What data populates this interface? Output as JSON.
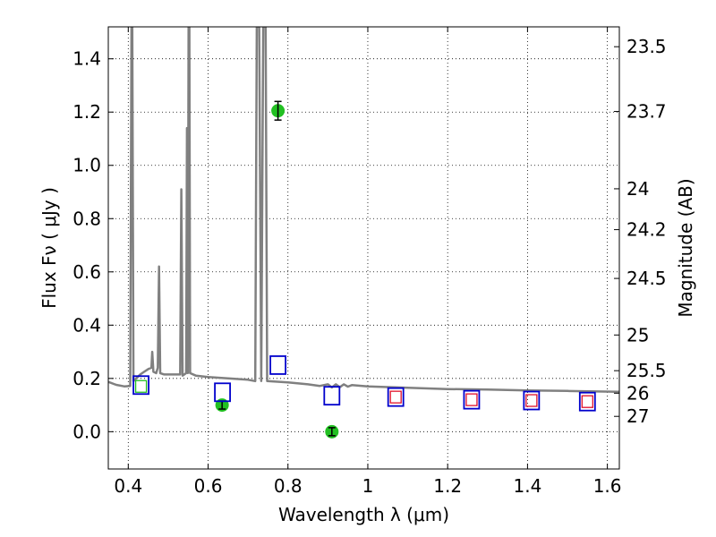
{
  "chart_data": {
    "type": "scatter",
    "xlabel": "Wavelength  λ (μm)",
    "ylabel": "Flux  Fν  ( μJy )",
    "y2label": "Magnitude (AB)",
    "xlim": [
      0.35,
      1.63
    ],
    "ylim": [
      -0.14,
      1.52
    ],
    "grid": true,
    "xticks": [
      0.4,
      0.6,
      0.8,
      1.0,
      1.2,
      1.4,
      1.6
    ],
    "xtick_labels": [
      "0.4",
      "0.6",
      "0.8",
      "1",
      "1.2",
      "1.4",
      "1.6"
    ],
    "yticks": [
      0.0,
      0.2,
      0.4,
      0.6,
      0.8,
      1.0,
      1.2,
      1.4
    ],
    "ytick_labels": [
      "0.0",
      "0.2",
      "0.4",
      "0.6",
      "0.8",
      "1.0",
      "1.2",
      "1.4"
    ],
    "mag_ticks": [
      23.5,
      23.7,
      24,
      24.2,
      24.5,
      25,
      25.5,
      26,
      27
    ],
    "mag_tick_labels": [
      "23.5",
      "23.7",
      "24",
      "24.2",
      "24.5",
      "25",
      "25.5",
      "26",
      "27"
    ],
    "colors": {
      "spectrum": "#808080",
      "observed": "#22c022",
      "model_blue": "#0000cc",
      "model_red": "#e0102a",
      "green_square": "#22c022"
    },
    "series": [
      {
        "kind": "spectrum",
        "points": [
          [
            0.35,
            0.187
          ],
          [
            0.37,
            0.176
          ],
          [
            0.39,
            0.17
          ],
          [
            0.405,
            0.172
          ],
          [
            0.408,
            1.52
          ],
          [
            0.41,
            1.52
          ],
          [
            0.413,
            0.19
          ],
          [
            0.42,
            0.2
          ],
          [
            0.43,
            0.215
          ],
          [
            0.44,
            0.225
          ],
          [
            0.45,
            0.235
          ],
          [
            0.458,
            0.24
          ],
          [
            0.46,
            0.3
          ],
          [
            0.463,
            0.225
          ],
          [
            0.47,
            0.22
          ],
          [
            0.474,
            0.24
          ],
          [
            0.477,
            0.62
          ],
          [
            0.48,
            0.22
          ],
          [
            0.49,
            0.215
          ],
          [
            0.5,
            0.215
          ],
          [
            0.51,
            0.215
          ],
          [
            0.52,
            0.215
          ],
          [
            0.53,
            0.215
          ],
          [
            0.533,
            0.91
          ],
          [
            0.536,
            0.21
          ],
          [
            0.545,
            0.22
          ],
          [
            0.547,
            1.14
          ],
          [
            0.549,
            0.22
          ],
          [
            0.551,
            1.52
          ],
          [
            0.553,
            1.52
          ],
          [
            0.555,
            0.22
          ],
          [
            0.57,
            0.21
          ],
          [
            0.6,
            0.205
          ],
          [
            0.65,
            0.2
          ],
          [
            0.7,
            0.195
          ],
          [
            0.718,
            0.19
          ],
          [
            0.722,
            1.52
          ],
          [
            0.728,
            1.52
          ],
          [
            0.733,
            0.19
          ],
          [
            0.738,
            1.52
          ],
          [
            0.744,
            1.52
          ],
          [
            0.748,
            0.19
          ],
          [
            0.8,
            0.185
          ],
          [
            0.85,
            0.178
          ],
          [
            0.88,
            0.172
          ],
          [
            0.9,
            0.178
          ],
          [
            0.91,
            0.166
          ],
          [
            0.92,
            0.178
          ],
          [
            0.93,
            0.167
          ],
          [
            0.94,
            0.178
          ],
          [
            0.95,
            0.169
          ],
          [
            0.96,
            0.175
          ],
          [
            1.0,
            0.17
          ],
          [
            1.1,
            0.165
          ],
          [
            1.2,
            0.16
          ],
          [
            1.3,
            0.158
          ],
          [
            1.4,
            0.155
          ],
          [
            1.5,
            0.153
          ],
          [
            1.63,
            0.15
          ]
        ]
      },
      {
        "kind": "observed",
        "points": [
          {
            "x": 0.635,
            "y": 0.1,
            "yerr": 0.015
          },
          {
            "x": 0.775,
            "y": 1.205,
            "yerr": 0.035
          },
          {
            "x": 0.91,
            "y": 0.0,
            "yerr": 0.015
          }
        ]
      },
      {
        "kind": "model_blue",
        "points": [
          [
            0.432,
            0.175
          ],
          [
            0.636,
            0.148
          ],
          [
            0.775,
            0.25
          ],
          [
            0.91,
            0.135
          ],
          [
            1.07,
            0.13
          ],
          [
            1.26,
            0.12
          ],
          [
            1.41,
            0.117
          ],
          [
            1.55,
            0.113
          ]
        ]
      },
      {
        "kind": "model_red",
        "points": [
          [
            1.07,
            0.13
          ],
          [
            1.26,
            0.12
          ],
          [
            1.41,
            0.117
          ],
          [
            1.55,
            0.113
          ]
        ]
      },
      {
        "kind": "green_square",
        "points": [
          [
            0.432,
            0.17
          ]
        ]
      }
    ]
  }
}
